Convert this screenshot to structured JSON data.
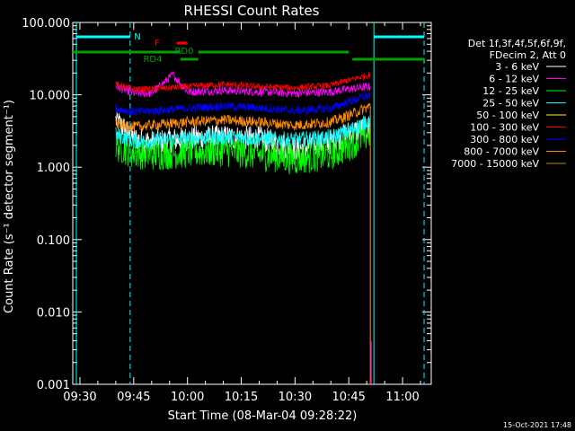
{
  "chart_data": {
    "type": "line",
    "title": "RHESSI Count Rates",
    "xlabel": "Start Time (08-Mar-04 09:28:22)",
    "ylabel": "Count Rate (s⁻¹ detector segment⁻¹)",
    "yscale": "log",
    "ylim": [
      0.001,
      100
    ],
    "xlim": [
      "09:28",
      "11:08"
    ],
    "x_ticks": [
      "09:30",
      "09:45",
      "10:00",
      "10:15",
      "10:30",
      "10:45",
      "11:00"
    ],
    "y_ticks": [
      "0.001",
      "0.010",
      "0.100",
      "1.000",
      "10.000",
      "100.000"
    ],
    "grid": false,
    "legend_position": "right",
    "legend_header": [
      "Det 1f,3f,4f,5f,6f,9f,",
      "FDecim 2, Att 0"
    ],
    "time_range": [
      "09:40",
      "10:51"
    ],
    "series": [
      {
        "name": "3 - 6 keV",
        "color": "#ffffff",
        "x": [
          "09:40",
          "09:45",
          "09:50",
          "10:00",
          "10:10",
          "10:20",
          "10:30",
          "10:40",
          "10:45",
          "10:51"
        ],
        "y": [
          4.5,
          2.5,
          2.2,
          2.5,
          2.6,
          2.5,
          1.8,
          2.2,
          3.0,
          3.5
        ]
      },
      {
        "name": "6 - 12 keV",
        "color": "#ff00ff",
        "x": [
          "09:40",
          "09:45",
          "09:50",
          "09:56",
          "10:00",
          "10:10",
          "10:20",
          "10:30",
          "10:40",
          "10:45",
          "10:51"
        ],
        "y": [
          13,
          10.5,
          10.5,
          19,
          11,
          11.5,
          11,
          10.5,
          11,
          12,
          13
        ]
      },
      {
        "name": "12 - 25 keV",
        "color": "#00ff00",
        "x": [
          "09:40",
          "09:45",
          "09:50",
          "10:00",
          "10:10",
          "10:20",
          "10:30",
          "10:40",
          "10:45",
          "10:51"
        ],
        "y": [
          2.0,
          1.6,
          1.5,
          1.6,
          1.7,
          1.5,
          1.3,
          1.5,
          2.0,
          3.0
        ]
      },
      {
        "name": "25 - 50 keV",
        "color": "#00ffff",
        "x": [
          "09:40",
          "09:45",
          "09:50",
          "10:00",
          "10:10",
          "10:20",
          "10:30",
          "10:40",
          "10:45",
          "10:51"
        ],
        "y": [
          2.8,
          2.3,
          2.3,
          2.5,
          2.6,
          2.5,
          2.4,
          2.6,
          3.2,
          4.5
        ]
      },
      {
        "name": "50 - 100 keV",
        "color": "#ffff00",
        "x": [],
        "y": []
      },
      {
        "name": "100 - 300 keV",
        "color": "#ff0000",
        "x": [
          "09:40",
          "09:45",
          "09:50",
          "10:00",
          "10:10",
          "10:20",
          "10:30",
          "10:40",
          "10:45",
          "10:51"
        ],
        "y": [
          14,
          12,
          12,
          13,
          14,
          13,
          12.5,
          13.5,
          16,
          19
        ]
      },
      {
        "name": "300 - 800 keV",
        "color": "#0000ff",
        "x": [
          "09:40",
          "09:45",
          "09:50",
          "10:00",
          "10:10",
          "10:20",
          "10:30",
          "10:40",
          "10:45",
          "10:51"
        ],
        "y": [
          6.5,
          5.8,
          6.0,
          6.5,
          7.0,
          6.6,
          6.0,
          6.5,
          8.0,
          10
        ]
      },
      {
        "name": "800 - 7000 keV",
        "color": "#ff8c00",
        "x": [
          "09:40",
          "09:45",
          "09:50",
          "10:00",
          "10:10",
          "10:20",
          "10:30",
          "10:40",
          "10:45",
          "10:51"
        ],
        "y": [
          4.0,
          3.6,
          3.8,
          4.2,
          4.5,
          4.2,
          3.8,
          4.2,
          5.2,
          7.0
        ]
      },
      {
        "name": "7000 - 15000 keV",
        "color": "#b8860b",
        "x": [],
        "y": []
      }
    ],
    "flags": [
      {
        "label": "N",
        "color": "#00ffff",
        "segments": [
          [
            "09:29",
            "09:44"
          ],
          [
            "10:52",
            "11:06"
          ]
        ]
      },
      {
        "label": "F",
        "color": "#ff0000",
        "segments": [
          [
            "09:57",
            "10:00"
          ]
        ]
      },
      {
        "label": "RD0",
        "color": "#00a000",
        "segments": [
          [
            "09:28",
            "09:58"
          ],
          [
            "10:03",
            "10:45"
          ]
        ]
      },
      {
        "label": "RD4",
        "color": "#00a000",
        "segments": [
          [
            "09:58",
            "10:03"
          ],
          [
            "10:46",
            "11:06"
          ]
        ]
      }
    ],
    "vlines": [
      {
        "x": "09:29",
        "color": "#00ffff",
        "style": "solid"
      },
      {
        "x": "09:44",
        "color": "#00ffff",
        "style": "dashed"
      },
      {
        "x": "10:52",
        "color": "#00ffff",
        "style": "solid"
      },
      {
        "x": "11:06",
        "color": "#00ffff",
        "style": "dashed"
      }
    ]
  },
  "timestamp": "15-Oct-2021 17:48"
}
